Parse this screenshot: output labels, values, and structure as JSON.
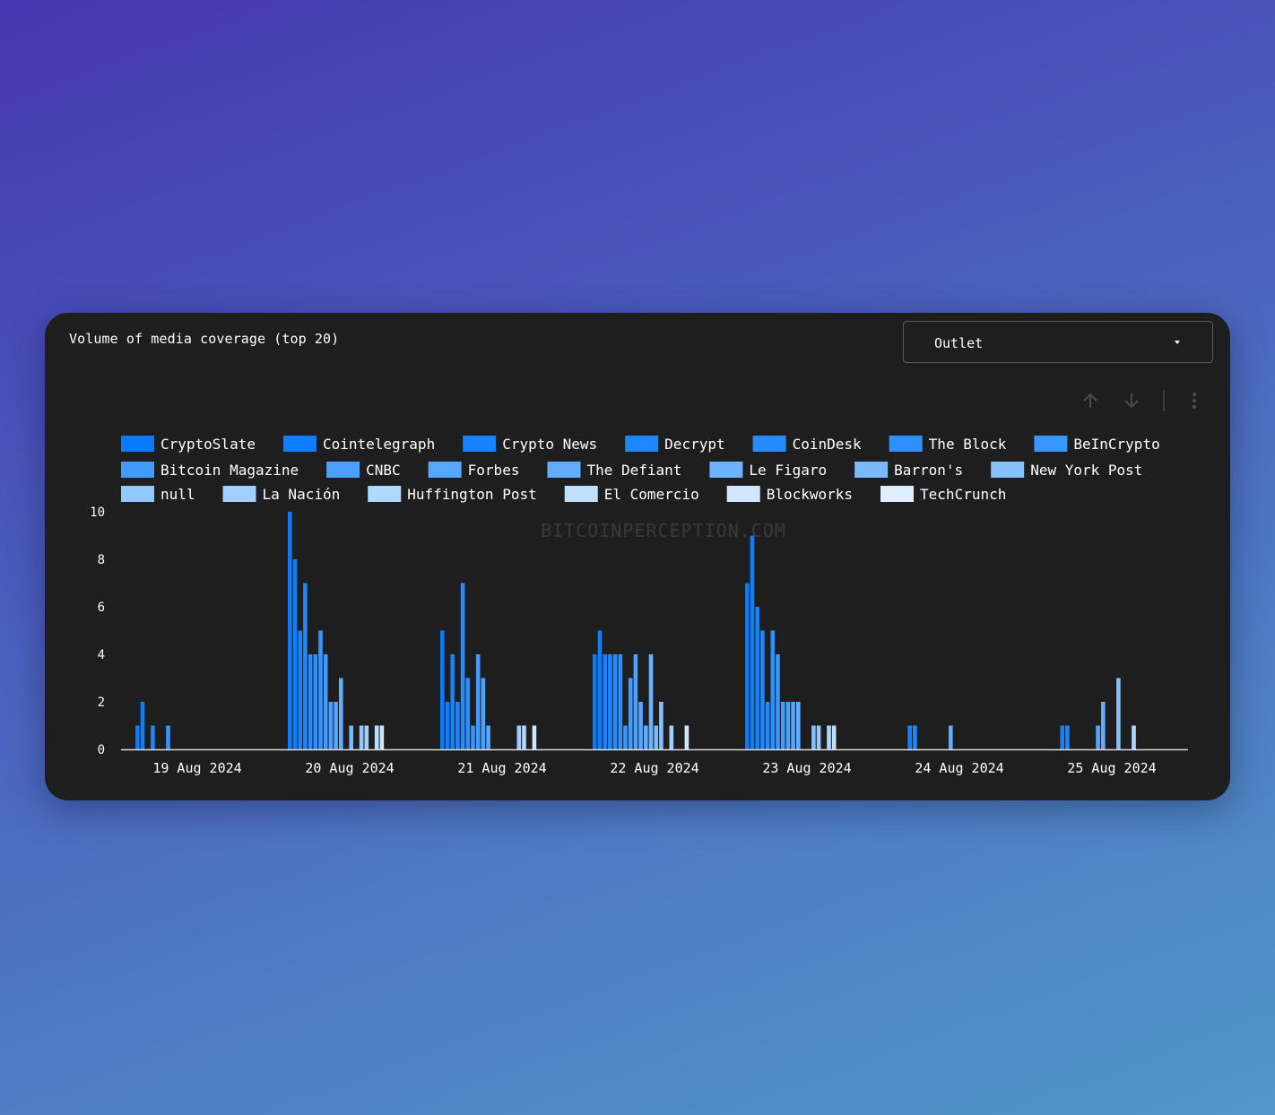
{
  "card": {
    "title": "Volume of media coverage (top 20)"
  },
  "group_select": {
    "value": "Outlet"
  },
  "toolbar": {
    "icons": [
      "arrow-up-icon",
      "arrow-down-icon",
      "more-vertical-icon"
    ]
  },
  "watermark": "BITCOINPERCEPTION.COM",
  "colors": {
    "card_bg": "#1e1e1e",
    "axis": "#d9d9d9",
    "text": "#ffffff",
    "icon": "#4a4a4a",
    "watermark": "#3a3a3a"
  },
  "chart_data": {
    "type": "bar",
    "title": "",
    "xlabel": "",
    "ylabel": "",
    "ylim": [
      0,
      10
    ],
    "yticks": [
      0,
      2,
      4,
      6,
      8,
      10
    ],
    "grid": false,
    "legend_position": "top",
    "categories": [
      "19 Aug 2024",
      "20 Aug 2024",
      "21 Aug 2024",
      "22 Aug 2024",
      "23 Aug 2024",
      "24 Aug 2024",
      "25 Aug 2024"
    ],
    "series": [
      {
        "name": "CryptoSlate",
        "color": "#0a7aff",
        "values": [
          1,
          10,
          5,
          4,
          7,
          0,
          0
        ]
      },
      {
        "name": "Cointelegraph",
        "color": "#0f7dff",
        "values": [
          2,
          8,
          2,
          5,
          9,
          0,
          0
        ]
      },
      {
        "name": "Crypto News",
        "color": "#1682ff",
        "values": [
          0,
          5,
          4,
          4,
          6,
          1,
          1
        ]
      },
      {
        "name": "Decrypt",
        "color": "#1e86ff",
        "values": [
          1,
          7,
          2,
          4,
          5,
          1,
          1
        ]
      },
      {
        "name": "CoinDesk",
        "color": "#268bff",
        "values": [
          0,
          4,
          7,
          4,
          2,
          0,
          0
        ]
      },
      {
        "name": "The Block",
        "color": "#2e90ff",
        "values": [
          0,
          4,
          3,
          4,
          5,
          0,
          0
        ]
      },
      {
        "name": "BeInCrypto",
        "color": "#3896ff",
        "values": [
          1,
          5,
          1,
          1,
          4,
          0,
          0
        ]
      },
      {
        "name": "Bitcoin Magazine",
        "color": "#429bff",
        "values": [
          0,
          4,
          4,
          3,
          2,
          0,
          0
        ]
      },
      {
        "name": "CNBC",
        "color": "#4ca1ff",
        "values": [
          0,
          2,
          3,
          4,
          2,
          0,
          0
        ]
      },
      {
        "name": "Forbes",
        "color": "#56a7ff",
        "values": [
          0,
          2,
          1,
          2,
          2,
          0,
          1
        ]
      },
      {
        "name": "The Defiant",
        "color": "#62adff",
        "values": [
          0,
          3,
          0,
          1,
          2,
          1,
          2
        ]
      },
      {
        "name": "Le Figaro",
        "color": "#6db3ff",
        "values": [
          0,
          0,
          0,
          4,
          0,
          0,
          0
        ]
      },
      {
        "name": "Barron's",
        "color": "#79baff",
        "values": [
          0,
          1,
          0,
          1,
          0,
          0,
          0
        ]
      },
      {
        "name": "New York Post",
        "color": "#86c1ff",
        "values": [
          0,
          0,
          0,
          2,
          1,
          0,
          3
        ]
      },
      {
        "name": "null",
        "color": "#93c8ff",
        "values": [
          0,
          1,
          0,
          0,
          1,
          0,
          0
        ]
      },
      {
        "name": "La Nación",
        "color": "#a1cfff",
        "values": [
          0,
          1,
          1,
          1,
          0,
          0,
          0
        ]
      },
      {
        "name": "Huffington Post",
        "color": "#b0d7ff",
        "values": [
          0,
          0,
          1,
          0,
          1,
          0,
          1
        ]
      },
      {
        "name": "El Comercio",
        "color": "#bfdfff",
        "values": [
          0,
          1,
          0,
          0,
          1,
          0,
          0
        ]
      },
      {
        "name": "Blockworks",
        "color": "#cfe7ff",
        "values": [
          0,
          1,
          1,
          1,
          0,
          0,
          0
        ]
      },
      {
        "name": "TechCrunch",
        "color": "#e0efff",
        "values": [
          0,
          0,
          0,
          0,
          0,
          0,
          0
        ]
      }
    ]
  }
}
